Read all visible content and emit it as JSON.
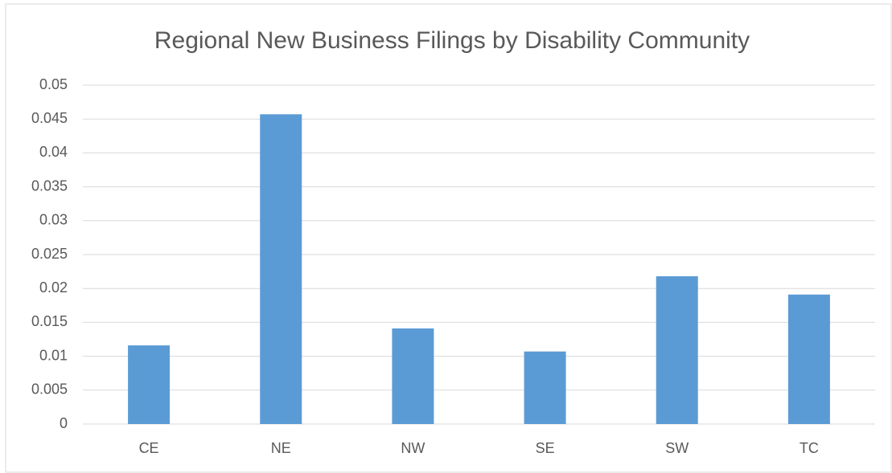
{
  "chart_data": {
    "type": "bar",
    "title": "Regional New Business Filings by Disability Community",
    "categories": [
      "CE",
      "NE",
      "NW",
      "SE",
      "SW",
      "TC"
    ],
    "values": [
      0.0116,
      0.0457,
      0.0141,
      0.0107,
      0.0218,
      0.0191
    ],
    "color": "#5b9bd5",
    "ylim": [
      0,
      0.05
    ],
    "yticks": [
      0,
      0.005,
      0.01,
      0.015,
      0.02,
      0.025,
      0.03,
      0.035,
      0.04,
      0.045,
      0.05
    ],
    "grid": true
  }
}
